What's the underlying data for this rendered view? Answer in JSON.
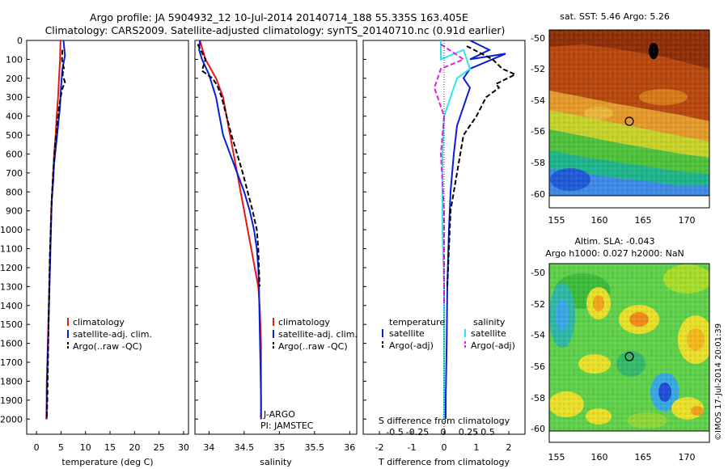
{
  "header": {
    "title_line1": "Argo profile: JA 5904932_12 10-Jul-2014 20140714_188 55.335S 163.405E",
    "title_line2": "Climatology: CARS2009. Satellite-adjusted climatology: synTS_20140710.nc (0.91d earlier)"
  },
  "colors": {
    "climatology": "#e6161b",
    "satellite": "#0a1ed6",
    "argo": "#000000",
    "sat_salinity": "#2ee6e6",
    "argo_salinity": "#e61ce6"
  },
  "chart_data": [
    {
      "type": "line",
      "panel": "temperature",
      "xlabel": "temperature (deg C)",
      "ylabel": "",
      "xlim": [
        -2,
        31
      ],
      "ylim": [
        2080,
        0
      ],
      "xticks": [
        0,
        5,
        10,
        15,
        20,
        25,
        30
      ],
      "yticks": [
        0,
        100,
        200,
        300,
        400,
        500,
        600,
        700,
        800,
        900,
        1000,
        1100,
        1200,
        1300,
        1400,
        1500,
        1600,
        1700,
        1800,
        1900,
        2000
      ],
      "legend": [
        "climatology",
        "satellite-adj. clim.",
        "Argo(..raw -QC)"
      ],
      "legend_position": "lower-center",
      "series": [
        {
          "name": "climatology",
          "color_key": "climatology",
          "x": [
            4.9,
            4.8,
            4.6,
            4.4,
            4.1,
            3.9,
            3.6,
            3.4,
            3.2,
            3.0,
            2.9,
            2.8,
            2.7,
            2.6,
            2.5,
            2.4,
            2.3,
            2.2,
            2.1,
            2.1,
            2.0
          ],
          "y": [
            0,
            100,
            200,
            300,
            400,
            500,
            600,
            700,
            800,
            900,
            1000,
            1100,
            1200,
            1300,
            1400,
            1500,
            1600,
            1700,
            1800,
            1900,
            2000
          ]
        },
        {
          "name": "satellite-adj. clim.",
          "color_key": "satellite",
          "x": [
            5.5,
            5.8,
            5.3,
            5.0,
            4.8,
            4.4,
            4.0,
            3.6,
            3.4,
            3.1,
            3.0,
            2.9,
            2.8,
            2.7,
            2.6,
            2.5,
            2.4,
            2.3,
            2.2,
            2.1,
            2.1
          ],
          "y": [
            0,
            80,
            150,
            250,
            350,
            450,
            550,
            650,
            750,
            850,
            950,
            1050,
            1150,
            1250,
            1350,
            1450,
            1550,
            1650,
            1750,
            1850,
            2000
          ]
        },
        {
          "name": "Argo(..raw -QC)",
          "color_key": "argo",
          "dashed": true,
          "x": [
            5.3,
            5.2,
            5.6,
            5.3,
            5.8,
            5.2,
            4.6,
            4.2,
            3.8,
            3.4,
            3.1,
            2.9,
            2.7,
            2.6,
            2.5,
            2.4,
            2.3,
            2.2,
            2.1
          ],
          "y": [
            50,
            100,
            150,
            180,
            220,
            260,
            350,
            450,
            550,
            700,
            850,
            1000,
            1150,
            1300,
            1450,
            1600,
            1750,
            1900,
            2000
          ]
        }
      ]
    },
    {
      "type": "line",
      "panel": "salinity",
      "xlabel": "salinity",
      "xlim": [
        33.8,
        36.1
      ],
      "ylim": [
        2080,
        0
      ],
      "xticks": [
        34,
        34.5,
        35,
        35.5,
        36
      ],
      "legend": [
        "climatology",
        "satellite-adj. clim.",
        "Argo(..raw -QC)"
      ],
      "legend_position": "lower-right",
      "annotation_1": "J-ARGO",
      "annotation_2": "PI: JAMSTEC",
      "series": [
        {
          "name": "climatology",
          "color_key": "climatology",
          "x": [
            33.87,
            33.95,
            34.1,
            34.2,
            34.25,
            34.3,
            34.35,
            34.4,
            34.45,
            34.5,
            34.55,
            34.6,
            34.65,
            34.7,
            34.72,
            34.73,
            34.74,
            34.74,
            34.74,
            34.74
          ],
          "y": [
            0,
            100,
            200,
            300,
            400,
            500,
            600,
            700,
            800,
            900,
            1000,
            1100,
            1200,
            1300,
            1400,
            1500,
            1600,
            1700,
            1800,
            2000
          ]
        },
        {
          "name": "satellite-adj. clim.",
          "color_key": "satellite",
          "x": [
            33.87,
            33.86,
            33.9,
            34.0,
            34.05,
            34.1,
            34.15,
            34.2,
            34.3,
            34.4,
            34.5,
            34.58,
            34.64,
            34.68,
            34.7,
            34.71,
            34.72,
            34.73,
            34.74,
            34.74
          ],
          "y": [
            0,
            50,
            100,
            180,
            240,
            300,
            400,
            500,
            600,
            700,
            800,
            900,
            1000,
            1100,
            1200,
            1300,
            1500,
            1700,
            1900,
            2000
          ]
        },
        {
          "name": "Argo(..raw -QC)",
          "color_key": "argo",
          "dashed": true,
          "x": [
            33.84,
            33.95,
            33.9,
            34.05,
            34.12,
            34.18,
            34.25,
            34.32,
            34.4,
            34.48,
            34.55,
            34.62,
            34.68,
            34.7,
            34.71,
            34.72
          ],
          "y": [
            20,
            100,
            160,
            200,
            240,
            300,
            400,
            500,
            600,
            700,
            800,
            900,
            1000,
            1100,
            1200,
            1300
          ]
        }
      ]
    },
    {
      "type": "line",
      "panel": "difference",
      "xlabel": "T difference from climatology",
      "xlabel_top": "S difference from climatology",
      "xlim": [
        -2.5,
        2.5
      ],
      "ylim": [
        2080,
        0
      ],
      "xticks": [
        -2,
        -1,
        0,
        1,
        2
      ],
      "xticks_top": [
        "-0.5",
        "-0.25",
        "0",
        "0.25",
        "0.5"
      ],
      "xticks_top_at": [
        -2,
        -1,
        0,
        1,
        2
      ],
      "legend_left_title": "temperature",
      "legend_right_title": "salinity",
      "legend_left": [
        "satellite",
        "Argo(-adj)"
      ],
      "legend_right": [
        "satellite",
        "Argo(-adj)"
      ],
      "legend_position": "lower-center",
      "series": [
        {
          "name": "satellite",
          "color_key": "satellite",
          "x": [
            0.8,
            1.4,
            0.8,
            1.9,
            0.8,
            0.6,
            0.8,
            0.6,
            0.4,
            0.3,
            0.2,
            0.15,
            0.1,
            0.08,
            0.05,
            0.05
          ],
          "y": [
            0,
            50,
            100,
            70,
            150,
            200,
            250,
            350,
            450,
            600,
            800,
            1000,
            1300,
            1600,
            1900,
            2000
          ]
        },
        {
          "name": "Argo(-adj)",
          "color_key": "argo",
          "dashed": true,
          "x": [
            0.7,
            1.5,
            1.8,
            2.2,
            1.6,
            1.7,
            1.3,
            1.0,
            0.6,
            0.4,
            0.2,
            0.15,
            0.1
          ],
          "y": [
            30,
            100,
            150,
            180,
            230,
            250,
            300,
            400,
            500,
            700,
            900,
            1100,
            1300
          ]
        },
        {
          "name": "satellite",
          "color_key": "sat_salinity",
          "x": [
            -0.1,
            -0.1,
            0.6,
            0.8,
            0.4,
            0.2,
            0.0,
            -0.05,
            -0.05,
            -0.05,
            0.0,
            0.0,
            0.0
          ],
          "y": [
            0,
            100,
            50,
            150,
            200,
            300,
            400,
            600,
            800,
            1000,
            1300,
            1600,
            2000
          ]
        },
        {
          "name": "Argo(-adj)",
          "color_key": "argo_salinity",
          "dashed": true,
          "x": [
            -0.1,
            0.6,
            -0.1,
            -0.3,
            -0.2,
            0.0,
            -0.1,
            0.0,
            0.0,
            0.0
          ],
          "y": [
            20,
            100,
            150,
            250,
            300,
            400,
            600,
            900,
            1200,
            1400
          ]
        }
      ]
    },
    {
      "type": "heatmap",
      "panel": "sst-map",
      "title": "sat. SST: 5.46 Argo: 5.26",
      "xticks": [
        "155",
        "160",
        "165",
        "170"
      ],
      "yticks": [
        "-50",
        "-52",
        "-54",
        "-56",
        "-58",
        "-60"
      ],
      "xlim": [
        154,
        172.5
      ],
      "ylim": [
        -60,
        -49.3
      ],
      "marker": {
        "lon": 163.405,
        "lat": -55.335
      }
    },
    {
      "type": "heatmap",
      "panel": "sla-map",
      "title_line1": "Altim. SLA: -0.043",
      "title_line2": "Argo h1000: 0.027 h2000: NaN",
      "xticks": [
        "155",
        "160",
        "165",
        "170"
      ],
      "yticks": [
        "-50",
        "-52",
        "-54",
        "-56",
        "-58",
        "-60"
      ],
      "xlim": [
        154,
        172.5
      ],
      "ylim": [
        -60,
        -49.3
      ],
      "marker": {
        "lon": 163.405,
        "lat": -55.335
      }
    }
  ],
  "footer": {
    "credit": "©IMOS 17-Jul-2014 20:01:39"
  }
}
